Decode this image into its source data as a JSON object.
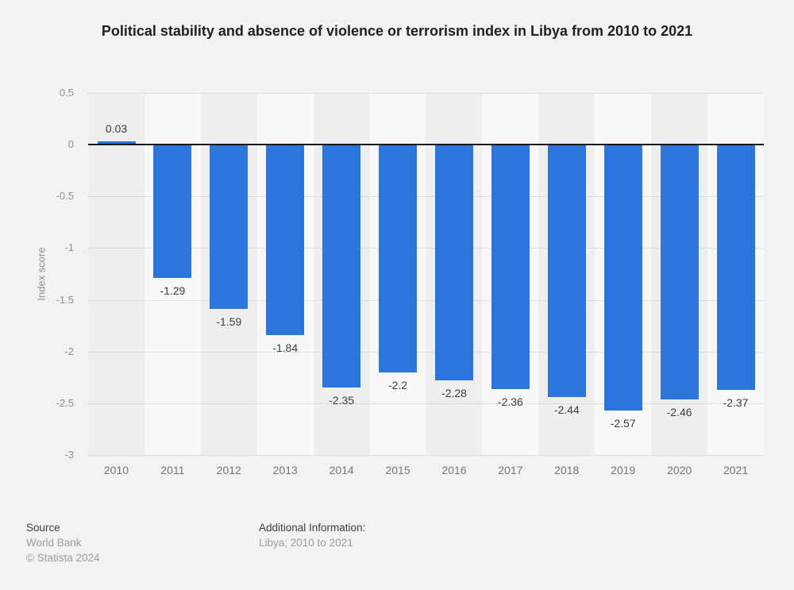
{
  "title": "Political stability and absence of violence or terrorism index in Libya from 2010 to 2021",
  "chart_data": {
    "type": "bar",
    "categories": [
      "2010",
      "2011",
      "2012",
      "2013",
      "2014",
      "2015",
      "2016",
      "2017",
      "2018",
      "2019",
      "2020",
      "2021"
    ],
    "values": [
      0.03,
      -1.29,
      -1.59,
      -1.84,
      -2.35,
      -2.2,
      -2.28,
      -2.36,
      -2.44,
      -2.57,
      -2.46,
      -2.37
    ],
    "value_labels": [
      "0.03",
      "-1.29",
      "-1.59",
      "-1.84",
      "-2.35",
      "-2.2",
      "-2.28",
      "-2.36",
      "-2.44",
      "-2.57",
      "-2.46",
      "-2.37"
    ],
    "title": "Political stability and absence of violence or terrorism index in Libya from 2010 to 2021",
    "xlabel": "",
    "ylabel": "Index score",
    "ylim": [
      -3,
      0.5
    ],
    "ytick_labels": [
      "0.5",
      "0",
      "-0.5",
      "-1",
      "-1.5",
      "-2",
      "-2.5",
      "-3"
    ],
    "grid": "horizontal-dotted",
    "legend": "none",
    "bar_color": "#2b76dd",
    "zero_line_color": "#141414",
    "band_color_dark": "#eeeeee",
    "band_color_light": "#f8f8f8",
    "background_color": "#f2f2f2"
  },
  "footer": {
    "source_label": "Source",
    "source_value": "World Bank",
    "copyright": "© Statista 2024",
    "additional_info_label": "Additional Information:",
    "additional_info_value": "Libya; 2010 to 2021"
  }
}
